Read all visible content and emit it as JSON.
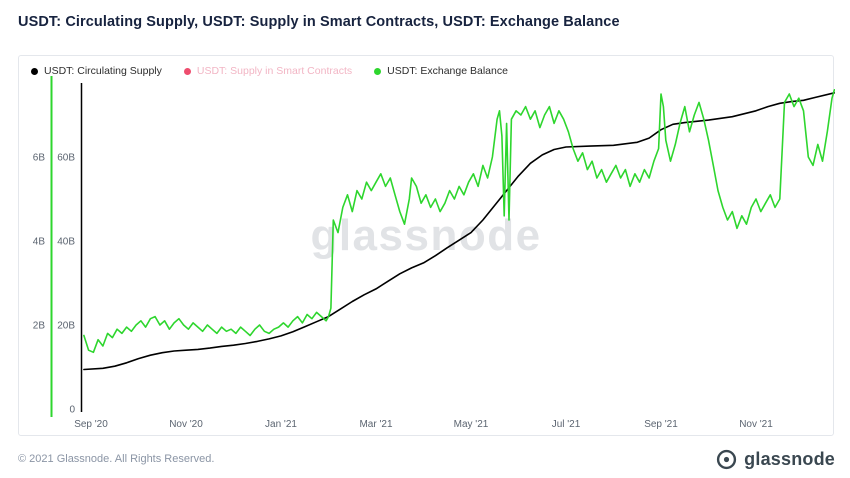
{
  "header": {
    "title": "USDT: Circulating Supply, USDT: Supply in Smart Contracts, USDT: Exchange Balance"
  },
  "legend": {
    "items": [
      {
        "label": "USDT: Circulating Supply",
        "color": "#000000",
        "muted": false
      },
      {
        "label": "USDT: Supply in Smart Contracts",
        "color": "#ee4d6e",
        "muted": true
      },
      {
        "label": "USDT: Exchange Balance",
        "color": "#2ed62e",
        "muted": false
      }
    ]
  },
  "watermark": {
    "text": "glassnode"
  },
  "footer": {
    "copyright": "© 2021 Glassnode. All Rights Reserved.",
    "brand": "glassnode"
  },
  "chart_data": {
    "type": "line",
    "title": "USDT: Circulating Supply, USDT: Supply in Smart Contracts, USDT: Exchange Balance",
    "legend_position": "top-left",
    "grid": false,
    "x_axis": {
      "unit": "months since Sep 2020",
      "xlim": [
        -0.2,
        15.7
      ],
      "ticks": [
        {
          "t": 0,
          "label": "Sep '20"
        },
        {
          "t": 2,
          "label": "Nov '20"
        },
        {
          "t": 4,
          "label": "Jan '21"
        },
        {
          "t": 6,
          "label": "Mar '21"
        },
        {
          "t": 8,
          "label": "May '21"
        },
        {
          "t": 10,
          "label": "Jul '21"
        },
        {
          "t": 12,
          "label": "Sep '21"
        },
        {
          "t": 14,
          "label": "Nov '21"
        }
      ]
    },
    "y_axes": [
      {
        "id": "exchange",
        "color": "#2ed62e",
        "ylim": [
          0,
          7.62
        ],
        "ticks": [
          {
            "v": 2,
            "label": "2B"
          },
          {
            "v": 4,
            "label": "4B"
          },
          {
            "v": 6,
            "label": "6B"
          }
        ]
      },
      {
        "id": "supply",
        "color": "#000000",
        "ylim": [
          0,
          76.2
        ],
        "ticks": [
          {
            "v": 0,
            "label": "0"
          },
          {
            "v": 20,
            "label": "20B"
          },
          {
            "v": 40,
            "label": "40B"
          },
          {
            "v": 60,
            "label": "60B"
          }
        ]
      }
    ],
    "series": [
      {
        "name": "USDT: Circulating Supply",
        "color": "#000000",
        "axis": "supply",
        "unit": "B USDT",
        "visible": true,
        "points": [
          [
            -0.15,
            9.4
          ],
          [
            0.25,
            9.7
          ],
          [
            0.5,
            10.2
          ],
          [
            0.75,
            11.0
          ],
          [
            1,
            12.0
          ],
          [
            1.25,
            12.8
          ],
          [
            1.5,
            13.4
          ],
          [
            1.75,
            13.8
          ],
          [
            2,
            14.0
          ],
          [
            2.25,
            14.2
          ],
          [
            2.5,
            14.5
          ],
          [
            2.75,
            14.9
          ],
          [
            3,
            15.2
          ],
          [
            3.25,
            15.6
          ],
          [
            3.5,
            16.1
          ],
          [
            3.75,
            16.7
          ],
          [
            4,
            17.4
          ],
          [
            4.25,
            18.4
          ],
          [
            4.5,
            19.6
          ],
          [
            4.75,
            20.8
          ],
          [
            5,
            22.0
          ],
          [
            5.25,
            23.8
          ],
          [
            5.5,
            25.6
          ],
          [
            5.75,
            27.2
          ],
          [
            6,
            28.6
          ],
          [
            6.25,
            30.4
          ],
          [
            6.5,
            32.2
          ],
          [
            6.75,
            33.6
          ],
          [
            7,
            34.8
          ],
          [
            7.25,
            36.5
          ],
          [
            7.5,
            38.4
          ],
          [
            7.75,
            40.2
          ],
          [
            8,
            42.0
          ],
          [
            8.25,
            45.0
          ],
          [
            8.5,
            48.5
          ],
          [
            8.75,
            52.0
          ],
          [
            9,
            55.5
          ],
          [
            9.25,
            58.5
          ],
          [
            9.5,
            60.5
          ],
          [
            9.75,
            61.8
          ],
          [
            10,
            62.4
          ],
          [
            10.5,
            62.6
          ],
          [
            11,
            62.8
          ],
          [
            11.5,
            63.5
          ],
          [
            11.75,
            64.5
          ],
          [
            12,
            66.5
          ],
          [
            12.25,
            67.8
          ],
          [
            12.5,
            68.2
          ],
          [
            13,
            68.8
          ],
          [
            13.5,
            69.6
          ],
          [
            14,
            71.0
          ],
          [
            14.25,
            72.0
          ],
          [
            14.5,
            72.8
          ],
          [
            14.75,
            73.2
          ],
          [
            15,
            73.5
          ],
          [
            15.25,
            74.2
          ],
          [
            15.65,
            75.3
          ]
        ]
      },
      {
        "name": "USDT: Supply in Smart Contracts",
        "color": "#ee4d6e",
        "axis": "supply",
        "unit": "B USDT",
        "visible": false,
        "points": []
      },
      {
        "name": "USDT: Exchange Balance",
        "color": "#2ed62e",
        "axis": "exchange",
        "unit": "B USDT",
        "visible": true,
        "points": [
          [
            -0.15,
            1.75
          ],
          [
            -0.05,
            1.4
          ],
          [
            0.05,
            1.35
          ],
          [
            0.15,
            1.65
          ],
          [
            0.25,
            1.5
          ],
          [
            0.35,
            1.8
          ],
          [
            0.45,
            1.7
          ],
          [
            0.55,
            1.9
          ],
          [
            0.65,
            1.8
          ],
          [
            0.75,
            1.95
          ],
          [
            0.85,
            1.85
          ],
          [
            0.95,
            2.0
          ],
          [
            1.05,
            2.1
          ],
          [
            1.15,
            1.95
          ],
          [
            1.25,
            2.15
          ],
          [
            1.35,
            2.2
          ],
          [
            1.45,
            2.0
          ],
          [
            1.55,
            2.1
          ],
          [
            1.65,
            1.9
          ],
          [
            1.75,
            2.05
          ],
          [
            1.85,
            2.15
          ],
          [
            1.95,
            2.0
          ],
          [
            2.05,
            1.9
          ],
          [
            2.15,
            2.05
          ],
          [
            2.25,
            1.95
          ],
          [
            2.35,
            1.85
          ],
          [
            2.45,
            2.0
          ],
          [
            2.55,
            1.9
          ],
          [
            2.65,
            1.8
          ],
          [
            2.75,
            1.95
          ],
          [
            2.85,
            1.85
          ],
          [
            2.95,
            1.9
          ],
          [
            3.05,
            1.8
          ],
          [
            3.15,
            1.95
          ],
          [
            3.25,
            1.85
          ],
          [
            3.35,
            1.75
          ],
          [
            3.45,
            1.9
          ],
          [
            3.55,
            2.0
          ],
          [
            3.65,
            1.85
          ],
          [
            3.75,
            1.8
          ],
          [
            3.85,
            1.9
          ],
          [
            3.95,
            1.95
          ],
          [
            4.05,
            2.05
          ],
          [
            4.15,
            1.95
          ],
          [
            4.25,
            2.1
          ],
          [
            4.35,
            2.2
          ],
          [
            4.45,
            2.05
          ],
          [
            4.55,
            2.25
          ],
          [
            4.65,
            2.15
          ],
          [
            4.75,
            2.3
          ],
          [
            4.85,
            2.2
          ],
          [
            4.95,
            2.1
          ],
          [
            5.0,
            2.2
          ],
          [
            5.05,
            2.4
          ],
          [
            5.1,
            4.5
          ],
          [
            5.2,
            4.2
          ],
          [
            5.3,
            4.8
          ],
          [
            5.4,
            5.1
          ],
          [
            5.5,
            4.7
          ],
          [
            5.6,
            5.2
          ],
          [
            5.7,
            5.0
          ],
          [
            5.8,
            5.4
          ],
          [
            5.9,
            5.2
          ],
          [
            6.0,
            5.4
          ],
          [
            6.1,
            5.6
          ],
          [
            6.2,
            5.3
          ],
          [
            6.3,
            5.5
          ],
          [
            6.4,
            5.1
          ],
          [
            6.5,
            4.7
          ],
          [
            6.6,
            4.4
          ],
          [
            6.7,
            5.0
          ],
          [
            6.75,
            5.5
          ],
          [
            6.85,
            5.3
          ],
          [
            6.95,
            4.9
          ],
          [
            7.05,
            5.1
          ],
          [
            7.15,
            4.8
          ],
          [
            7.25,
            5.0
          ],
          [
            7.35,
            4.7
          ],
          [
            7.45,
            4.9
          ],
          [
            7.55,
            5.2
          ],
          [
            7.65,
            5.0
          ],
          [
            7.75,
            5.3
          ],
          [
            7.85,
            5.1
          ],
          [
            7.95,
            5.4
          ],
          [
            8.05,
            5.6
          ],
          [
            8.15,
            5.3
          ],
          [
            8.25,
            5.8
          ],
          [
            8.35,
            5.5
          ],
          [
            8.45,
            6.0
          ],
          [
            8.55,
            6.9
          ],
          [
            8.6,
            7.1
          ],
          [
            8.65,
            6.5
          ],
          [
            8.7,
            4.6
          ],
          [
            8.75,
            6.8
          ],
          [
            8.8,
            4.5
          ],
          [
            8.85,
            6.9
          ],
          [
            8.95,
            7.1
          ],
          [
            9.05,
            7.0
          ],
          [
            9.15,
            7.2
          ],
          [
            9.25,
            6.9
          ],
          [
            9.35,
            7.1
          ],
          [
            9.45,
            6.7
          ],
          [
            9.55,
            7.0
          ],
          [
            9.65,
            7.2
          ],
          [
            9.75,
            6.8
          ],
          [
            9.85,
            7.1
          ],
          [
            9.95,
            6.9
          ],
          [
            10.05,
            6.6
          ],
          [
            10.15,
            6.2
          ],
          [
            10.25,
            5.9
          ],
          [
            10.35,
            6.1
          ],
          [
            10.45,
            5.7
          ],
          [
            10.55,
            5.9
          ],
          [
            10.65,
            5.5
          ],
          [
            10.75,
            5.7
          ],
          [
            10.85,
            5.4
          ],
          [
            10.95,
            5.6
          ],
          [
            11.05,
            5.8
          ],
          [
            11.15,
            5.5
          ],
          [
            11.25,
            5.7
          ],
          [
            11.35,
            5.3
          ],
          [
            11.45,
            5.6
          ],
          [
            11.55,
            5.4
          ],
          [
            11.65,
            5.7
          ],
          [
            11.75,
            5.5
          ],
          [
            11.85,
            5.9
          ],
          [
            11.95,
            6.2
          ],
          [
            12.0,
            7.5
          ],
          [
            12.05,
            7.2
          ],
          [
            12.1,
            6.4
          ],
          [
            12.2,
            5.9
          ],
          [
            12.3,
            6.3
          ],
          [
            12.4,
            6.8
          ],
          [
            12.5,
            7.2
          ],
          [
            12.6,
            6.6
          ],
          [
            12.7,
            7.0
          ],
          [
            12.8,
            7.3
          ],
          [
            12.9,
            6.9
          ],
          [
            13.0,
            6.4
          ],
          [
            13.1,
            5.8
          ],
          [
            13.2,
            5.2
          ],
          [
            13.3,
            4.8
          ],
          [
            13.4,
            4.5
          ],
          [
            13.5,
            4.7
          ],
          [
            13.6,
            4.3
          ],
          [
            13.7,
            4.6
          ],
          [
            13.8,
            4.4
          ],
          [
            13.9,
            4.8
          ],
          [
            14.0,
            5.0
          ],
          [
            14.1,
            4.7
          ],
          [
            14.2,
            4.9
          ],
          [
            14.3,
            5.1
          ],
          [
            14.4,
            4.8
          ],
          [
            14.5,
            5.0
          ],
          [
            14.6,
            7.3
          ],
          [
            14.7,
            7.5
          ],
          [
            14.8,
            7.2
          ],
          [
            14.9,
            7.4
          ],
          [
            15.0,
            7.1
          ],
          [
            15.1,
            6.0
          ],
          [
            15.2,
            5.8
          ],
          [
            15.3,
            6.3
          ],
          [
            15.4,
            5.9
          ],
          [
            15.5,
            6.6
          ],
          [
            15.6,
            7.4
          ],
          [
            15.65,
            7.6
          ]
        ]
      }
    ]
  }
}
